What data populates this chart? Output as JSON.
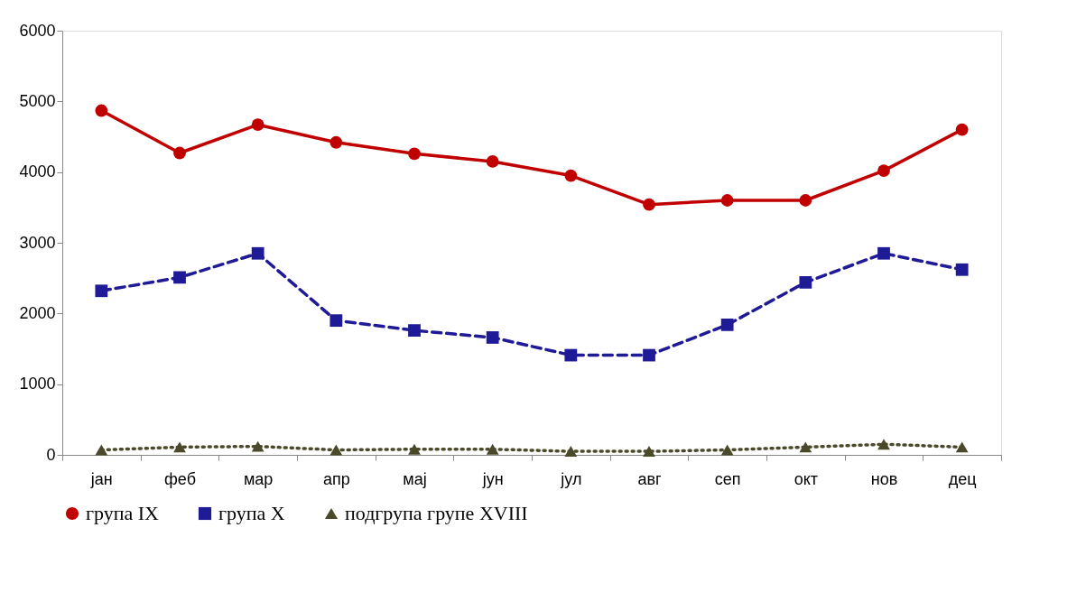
{
  "chart_data": {
    "type": "line",
    "categories": [
      "јан",
      "феб",
      "мар",
      "апр",
      "мај",
      "јун",
      "јул",
      "авг",
      "сеп",
      "окт",
      "нов",
      "дец"
    ],
    "series": [
      {
        "name": "група IX",
        "color": "#c00000",
        "marker": "circle",
        "line_style": "solid",
        "values": [
          4870,
          4270,
          4670,
          4420,
          4260,
          4150,
          3950,
          3540,
          3600,
          3600,
          4020,
          4600
        ]
      },
      {
        "name": "група X",
        "color": "#1f1a96",
        "marker": "square",
        "line_style": "dashed",
        "values": [
          2320,
          2510,
          2850,
          1900,
          1760,
          1660,
          1410,
          1410,
          1840,
          2440,
          2850,
          2620
        ]
      },
      {
        "name": "подгрупа групе XVIII",
        "color": "#4a4a2a",
        "marker": "triangle",
        "line_style": "dotted",
        "values": [
          70,
          110,
          120,
          70,
          80,
          80,
          50,
          50,
          70,
          110,
          150,
          110
        ]
      }
    ],
    "ylim": [
      0,
      6000
    ],
    "yticks": [
      0,
      1000,
      2000,
      3000,
      4000,
      5000,
      6000
    ],
    "grid": false,
    "legend": "bottom"
  }
}
